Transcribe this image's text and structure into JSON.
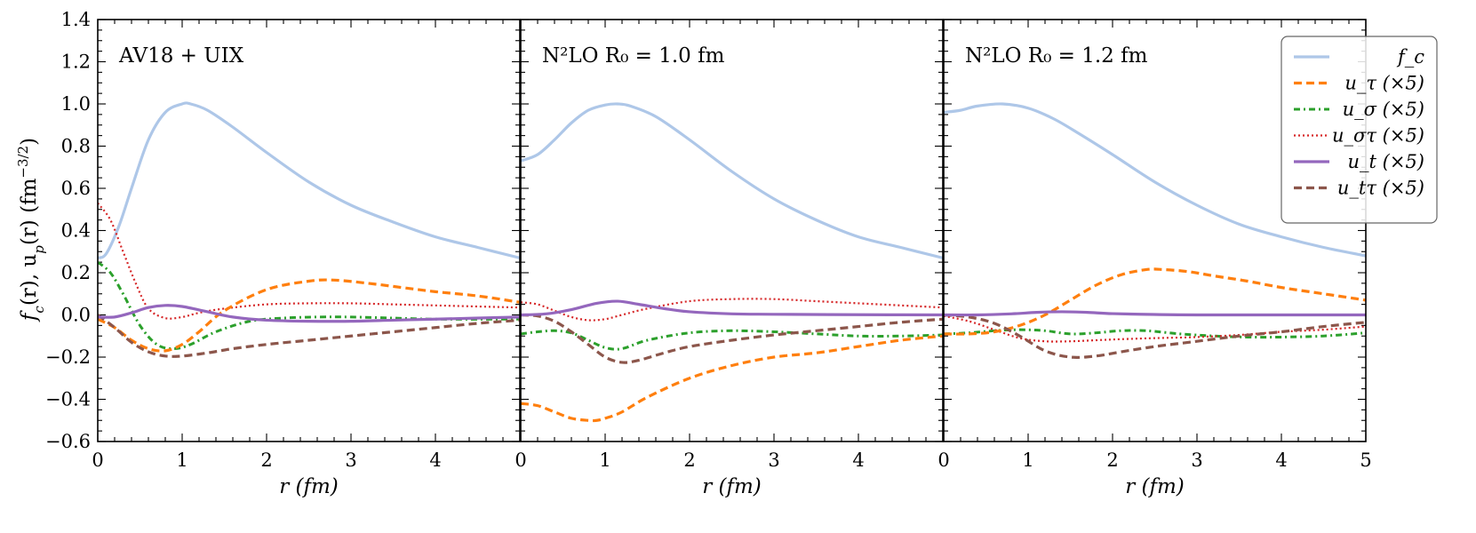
{
  "chart_data": {
    "type": "line",
    "ylabel": "f_c(r), u_p(r) (fm^-3/2)",
    "ylim": [
      -0.6,
      1.4
    ],
    "yticks": [
      -0.6,
      -0.4,
      -0.2,
      0.0,
      0.2,
      0.4,
      0.6,
      0.8,
      1.0,
      1.2,
      1.4
    ],
    "ytick_labels": [
      "−0.6",
      "−0.4",
      "−0.2",
      "0.0",
      "0.2",
      "0.4",
      "0.6",
      "0.8",
      "1.0",
      "1.2",
      "1.4"
    ],
    "xlim": [
      0,
      5
    ],
    "xlabel": "r (fm)",
    "xticks": [
      0,
      1,
      2,
      3,
      4,
      5
    ],
    "legend_position": "top-right",
    "legend": [
      {
        "key": "fc",
        "label": "f_c",
        "color": "#aec7e8",
        "style": "solid"
      },
      {
        "key": "utau",
        "label": "u_τ (×5)",
        "color": "#ff7f0e",
        "style": "dashed"
      },
      {
        "key": "usig",
        "label": "u_σ (×5)",
        "color": "#2ca02c",
        "style": "dashdot"
      },
      {
        "key": "ust",
        "label": "u_στ (×5)",
        "color": "#d62728",
        "style": "dotted"
      },
      {
        "key": "ut",
        "label": "u_t (×5)",
        "color": "#9467bd",
        "style": "solid"
      },
      {
        "key": "uttau",
        "label": "u_tτ (×5)",
        "color": "#8c564b",
        "style": "dashed"
      }
    ],
    "panels": [
      {
        "label": "AV18 + UIX",
        "xtick_labels": [
          "0",
          "1",
          "2",
          "3",
          "4"
        ],
        "series": {
          "fc": {
            "x": [
              0,
              0.1,
              0.25,
              0.4,
              0.6,
              0.8,
              1.0,
              1.1,
              1.3,
              1.6,
              2.0,
              2.5,
              3.0,
              3.5,
              4.0,
              4.5,
              5.0
            ],
            "y": [
              0.27,
              0.29,
              0.42,
              0.6,
              0.83,
              0.96,
              1.0,
              1.0,
              0.97,
              0.89,
              0.77,
              0.63,
              0.52,
              0.44,
              0.37,
              0.32,
              0.27
            ]
          },
          "utau": {
            "x": [
              0,
              0.2,
              0.4,
              0.6,
              0.8,
              1.0,
              1.2,
              1.5,
              2.0,
              2.5,
              2.8,
              3.2,
              3.6,
              4.0,
              4.5,
              5.0
            ],
            "y": [
              -0.02,
              -0.06,
              -0.12,
              -0.16,
              -0.17,
              -0.14,
              -0.08,
              0.02,
              0.12,
              0.16,
              0.165,
              0.15,
              0.13,
              0.11,
              0.09,
              0.06
            ]
          },
          "usig": {
            "x": [
              0,
              0.15,
              0.3,
              0.5,
              0.7,
              0.9,
              1.1,
              1.4,
              1.8,
              2.2,
              2.6,
              3.0,
              3.5,
              4.0,
              5.0
            ],
            "y": [
              0.25,
              0.2,
              0.1,
              -0.05,
              -0.14,
              -0.16,
              -0.14,
              -0.08,
              -0.03,
              -0.015,
              -0.01,
              -0.01,
              -0.015,
              -0.02,
              -0.02
            ]
          },
          "ust": {
            "x": [
              0,
              0.15,
              0.3,
              0.45,
              0.6,
              0.8,
              1.0,
              1.2,
              1.5,
              2.0,
              2.5,
              3.0,
              3.5,
              4.0,
              5.0
            ],
            "y": [
              0.53,
              0.45,
              0.3,
              0.15,
              0.03,
              -0.015,
              -0.01,
              0.01,
              0.03,
              0.05,
              0.055,
              0.055,
              0.05,
              0.045,
              0.035
            ]
          },
          "ut": {
            "x": [
              0,
              0.2,
              0.4,
              0.6,
              0.8,
              1.0,
              1.3,
              1.6,
              2.0,
              2.5,
              3.0,
              3.5,
              4.0,
              5.0
            ],
            "y": [
              -0.01,
              -0.01,
              0.01,
              0.035,
              0.045,
              0.04,
              0.015,
              -0.01,
              -0.025,
              -0.03,
              -0.03,
              -0.025,
              -0.02,
              -0.01
            ]
          },
          "uttau": {
            "x": [
              0,
              0.2,
              0.4,
              0.6,
              0.8,
              1.0,
              1.3,
              1.6,
              2.0,
              2.5,
              3.0,
              3.5,
              4.0,
              4.5,
              5.0
            ],
            "y": [
              0.0,
              -0.06,
              -0.13,
              -0.175,
              -0.195,
              -0.195,
              -0.18,
              -0.16,
              -0.14,
              -0.12,
              -0.1,
              -0.08,
              -0.06,
              -0.04,
              -0.025
            ]
          }
        }
      },
      {
        "label": "N²LO R₀ = 1.0 fm",
        "xtick_labels": [
          "0",
          "1",
          "2",
          "3",
          "4"
        ],
        "series": {
          "fc": {
            "x": [
              0,
              0.2,
              0.4,
              0.6,
              0.8,
              1.0,
              1.15,
              1.3,
              1.6,
              2.0,
              2.5,
              3.0,
              3.5,
              4.0,
              4.5,
              5.0
            ],
            "y": [
              0.73,
              0.76,
              0.83,
              0.91,
              0.97,
              0.995,
              1.0,
              0.99,
              0.94,
              0.83,
              0.68,
              0.55,
              0.45,
              0.37,
              0.32,
              0.27
            ]
          },
          "utau": {
            "x": [
              0,
              0.2,
              0.4,
              0.6,
              0.8,
              0.9,
              1.0,
              1.2,
              1.5,
              2.0,
              2.5,
              3.0,
              3.5,
              4.0,
              4.5,
              5.0
            ],
            "y": [
              -0.42,
              -0.43,
              -0.46,
              -0.49,
              -0.5,
              -0.5,
              -0.49,
              -0.46,
              -0.39,
              -0.3,
              -0.24,
              -0.2,
              -0.18,
              -0.15,
              -0.12,
              -0.1
            ]
          },
          "usig": {
            "x": [
              0,
              0.2,
              0.4,
              0.6,
              0.8,
              1.0,
              1.2,
              1.5,
              2.0,
              2.5,
              3.0,
              3.5,
              4.0,
              4.5,
              5.0
            ],
            "y": [
              -0.09,
              -0.08,
              -0.075,
              -0.085,
              -0.12,
              -0.155,
              -0.16,
              -0.12,
              -0.085,
              -0.075,
              -0.08,
              -0.09,
              -0.1,
              -0.1,
              -0.095
            ]
          },
          "ust": {
            "x": [
              0,
              0.2,
              0.4,
              0.6,
              0.8,
              1.0,
              1.2,
              1.5,
              2.0,
              2.5,
              3.0,
              3.5,
              4.0,
              4.5,
              5.0
            ],
            "y": [
              0.06,
              0.05,
              0.02,
              -0.01,
              -0.025,
              -0.02,
              0.0,
              0.03,
              0.065,
              0.075,
              0.075,
              0.065,
              0.055,
              0.045,
              0.035
            ]
          },
          "ut": {
            "x": [
              0,
              0.3,
              0.6,
              0.9,
              1.15,
              1.4,
              1.7,
              2.0,
              2.5,
              3.0,
              4.0,
              5.0
            ],
            "y": [
              0.0,
              0.005,
              0.025,
              0.055,
              0.065,
              0.05,
              0.03,
              0.015,
              0.005,
              0.003,
              0.001,
              0.0
            ]
          },
          "uttau": {
            "x": [
              0,
              0.2,
              0.4,
              0.6,
              0.8,
              1.0,
              1.2,
              1.4,
              1.7,
              2.0,
              2.5,
              3.0,
              3.5,
              4.0,
              4.5,
              5.0
            ],
            "y": [
              0.0,
              -0.005,
              -0.03,
              -0.08,
              -0.14,
              -0.2,
              -0.225,
              -0.215,
              -0.18,
              -0.15,
              -0.12,
              -0.095,
              -0.075,
              -0.055,
              -0.035,
              -0.02
            ]
          }
        }
      },
      {
        "label": "N²LO R₀ = 1.2 fm",
        "xtick_labels": [
          "0",
          "1",
          "2",
          "3",
          "4",
          "5"
        ],
        "series": {
          "fc": {
            "x": [
              0,
              0.2,
              0.4,
              0.7,
              1.0,
              1.3,
              1.6,
              2.0,
              2.5,
              3.0,
              3.5,
              4.0,
              4.5,
              5.0
            ],
            "y": [
              0.96,
              0.97,
              0.99,
              1.0,
              0.98,
              0.93,
              0.86,
              0.76,
              0.63,
              0.52,
              0.43,
              0.37,
              0.32,
              0.28
            ]
          },
          "utau": {
            "x": [
              0,
              0.3,
              0.6,
              0.9,
              1.2,
              1.5,
              1.8,
              2.1,
              2.4,
              2.6,
              2.9,
              3.2,
              3.6,
              4.0,
              4.5,
              5.0
            ],
            "y": [
              -0.09,
              -0.09,
              -0.08,
              -0.05,
              0.0,
              0.07,
              0.14,
              0.19,
              0.215,
              0.215,
              0.205,
              0.185,
              0.16,
              0.13,
              0.1,
              0.07
            ]
          },
          "usig": {
            "x": [
              0,
              0.3,
              0.6,
              0.9,
              1.2,
              1.5,
              1.8,
              2.1,
              2.4,
              2.8,
              3.2,
              3.6,
              4.0,
              4.5,
              5.0
            ],
            "y": [
              -0.09,
              -0.085,
              -0.075,
              -0.07,
              -0.075,
              -0.09,
              -0.085,
              -0.075,
              -0.075,
              -0.09,
              -0.1,
              -0.105,
              -0.105,
              -0.1,
              -0.085
            ]
          },
          "ust": {
            "x": [
              0,
              0.3,
              0.6,
              0.9,
              1.2,
              1.5,
              1.8,
              2.1,
              2.5,
              3.0,
              3.5,
              4.0,
              4.5,
              5.0
            ],
            "y": [
              -0.005,
              -0.03,
              -0.07,
              -0.11,
              -0.125,
              -0.125,
              -0.12,
              -0.115,
              -0.11,
              -0.105,
              -0.095,
              -0.08,
              -0.07,
              -0.055
            ]
          },
          "ut": {
            "x": [
              0,
              0.4,
              0.8,
              1.1,
              1.4,
              1.7,
              2.0,
              2.5,
              3.0,
              4.0,
              5.0
            ],
            "y": [
              0.0,
              0.0,
              0.005,
              0.012,
              0.015,
              0.012,
              0.006,
              0.002,
              0.0,
              0.0,
              0.0
            ]
          },
          "uttau": {
            "x": [
              0,
              0.3,
              0.6,
              0.9,
              1.2,
              1.5,
              1.8,
              2.1,
              2.5,
              3.0,
              3.5,
              4.0,
              4.5,
              5.0
            ],
            "y": [
              0.0,
              -0.01,
              -0.04,
              -0.1,
              -0.17,
              -0.2,
              -0.195,
              -0.175,
              -0.15,
              -0.125,
              -0.1,
              -0.08,
              -0.055,
              -0.035
            ]
          }
        }
      }
    ]
  }
}
